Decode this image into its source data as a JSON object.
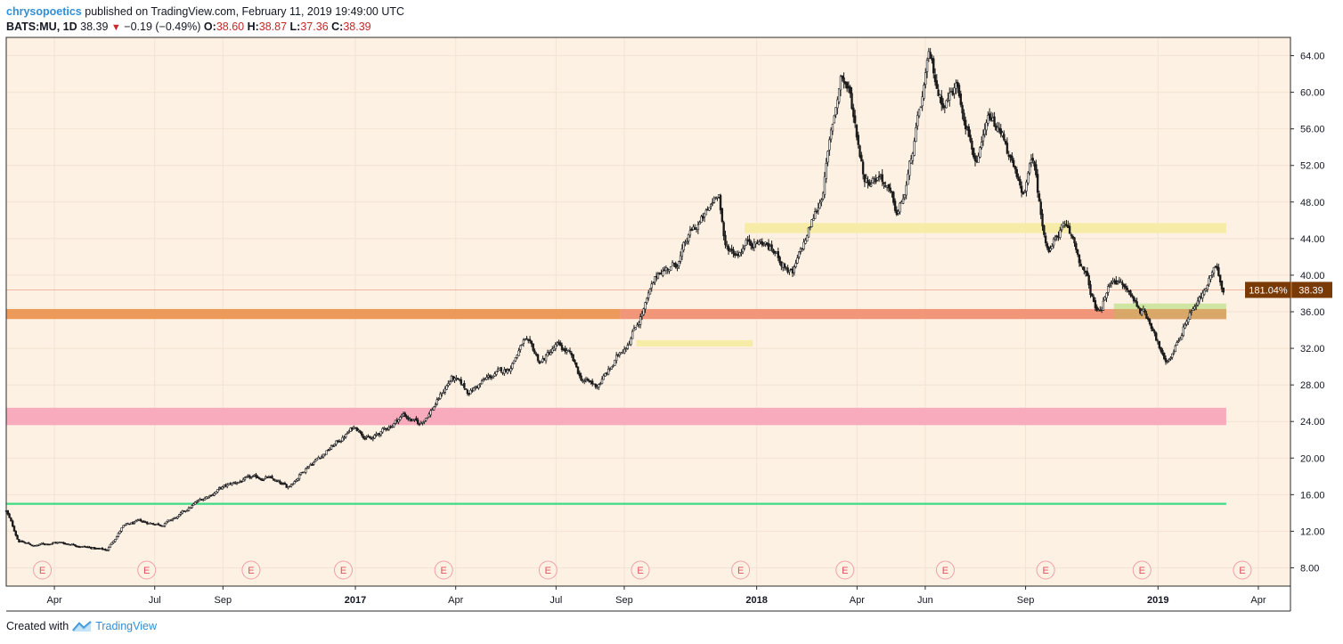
{
  "header": {
    "author": "chrysopoetics",
    "published_text": "published on TradingView.com, February 11, 2019 19:49:00 UTC",
    "symbol": "BATS:MU, 1D",
    "price": "38.39",
    "change": "−0.19 (−0.49%)",
    "o_label": "O:",
    "o_value": "38.60",
    "h_label": "H:",
    "h_value": "38.87",
    "l_label": "L:",
    "l_value": "37.36",
    "c_label": "C:",
    "c_value": "38.39"
  },
  "footer": {
    "created_with": "Created with",
    "brand": "TradingView"
  },
  "chart_data": {
    "type": "candlestick",
    "y_axis": {
      "min": 6,
      "max": 66,
      "ticks": [
        "64.00",
        "60.00",
        "56.00",
        "52.00",
        "48.00",
        "44.00",
        "40.00",
        "36.00",
        "32.00",
        "28.00",
        "24.00",
        "20.00",
        "16.00",
        "12.00",
        "8.00"
      ]
    },
    "x_axis": {
      "start": 2016.13,
      "end": 2019.33,
      "ticks": [
        {
          "t": 2016.25,
          "label": "Apr",
          "bold": false
        },
        {
          "t": 2016.5,
          "label": "Jul",
          "bold": false
        },
        {
          "t": 2016.67,
          "label": "Sep",
          "bold": false
        },
        {
          "t": 2017.0,
          "label": "2017",
          "bold": true
        },
        {
          "t": 2017.25,
          "label": "Apr",
          "bold": false
        },
        {
          "t": 2017.5,
          "label": "Jul",
          "bold": false
        },
        {
          "t": 2017.67,
          "label": "Sep",
          "bold": false
        },
        {
          "t": 2018.0,
          "label": "2018",
          "bold": true
        },
        {
          "t": 2018.25,
          "label": "Apr",
          "bold": false
        },
        {
          "t": 2018.42,
          "label": "Jun",
          "bold": false
        },
        {
          "t": 2018.67,
          "label": "Sep",
          "bold": false
        },
        {
          "t": 2019.0,
          "label": "2019",
          "bold": true
        },
        {
          "t": 2019.25,
          "label": "Apr",
          "bold": false
        }
      ]
    },
    "price_path": [
      [
        2016.13,
        14.2
      ],
      [
        2016.16,
        11.0
      ],
      [
        2016.2,
        10.4
      ],
      [
        2016.25,
        10.8
      ],
      [
        2016.3,
        10.6
      ],
      [
        2016.34,
        10.2
      ],
      [
        2016.38,
        9.9
      ],
      [
        2016.42,
        12.5
      ],
      [
        2016.46,
        13.0
      ],
      [
        2016.52,
        12.8
      ],
      [
        2016.56,
        13.6
      ],
      [
        2016.6,
        15.0
      ],
      [
        2016.66,
        16.6
      ],
      [
        2016.72,
        17.6
      ],
      [
        2016.78,
        17.9
      ],
      [
        2016.83,
        16.7
      ],
      [
        2016.88,
        19.2
      ],
      [
        2016.92,
        20.5
      ],
      [
        2016.96,
        21.9
      ],
      [
        2017.0,
        23.5
      ],
      [
        2017.04,
        22.0
      ],
      [
        2017.08,
        23.3
      ],
      [
        2017.12,
        24.8
      ],
      [
        2017.16,
        23.6
      ],
      [
        2017.2,
        26.0
      ],
      [
        2017.24,
        28.8
      ],
      [
        2017.28,
        27.2
      ],
      [
        2017.33,
        28.7
      ],
      [
        2017.38,
        29.7
      ],
      [
        2017.42,
        32.8
      ],
      [
        2017.46,
        30.4
      ],
      [
        2017.5,
        32.2
      ],
      [
        2017.53,
        31.5
      ],
      [
        2017.56,
        28.7
      ],
      [
        2017.6,
        27.8
      ],
      [
        2017.64,
        30.0
      ],
      [
        2017.68,
        33.0
      ],
      [
        2017.72,
        36.5
      ],
      [
        2017.76,
        40.6
      ],
      [
        2017.8,
        41.2
      ],
      [
        2017.84,
        44.8
      ],
      [
        2017.88,
        46.8
      ],
      [
        2017.905,
        49.7
      ],
      [
        2017.92,
        43.0
      ],
      [
        2017.95,
        42.5
      ],
      [
        2017.98,
        44.0
      ],
      [
        2018.02,
        43.5
      ],
      [
        2018.05,
        42.2
      ],
      [
        2018.09,
        40.0
      ],
      [
        2018.13,
        44.8
      ],
      [
        2018.16,
        48.4
      ],
      [
        2018.19,
        56.5
      ],
      [
        2018.21,
        62.0
      ],
      [
        2018.23,
        60.2
      ],
      [
        2018.27,
        50.5
      ],
      [
        2018.31,
        51.2
      ],
      [
        2018.35,
        46.5
      ],
      [
        2018.37,
        49.0
      ],
      [
        2018.4,
        56.2
      ],
      [
        2018.43,
        63.5
      ],
      [
        2018.46,
        59.0
      ],
      [
        2018.5,
        60.8
      ],
      [
        2018.52,
        57.6
      ],
      [
        2018.55,
        52.0
      ],
      [
        2018.58,
        56.8
      ],
      [
        2018.62,
        54.6
      ],
      [
        2018.66,
        48.3
      ],
      [
        2018.69,
        52.8
      ],
      [
        2018.71,
        45.8
      ],
      [
        2018.73,
        42.8
      ],
      [
        2018.76,
        45.3
      ],
      [
        2018.79,
        43.5
      ],
      [
        2018.82,
        39.8
      ],
      [
        2018.85,
        35.4
      ],
      [
        2018.89,
        40.0
      ],
      [
        2018.93,
        37.8
      ],
      [
        2018.96,
        36.2
      ],
      [
        2018.99,
        34.3
      ],
      [
        2019.02,
        30.0
      ],
      [
        2019.05,
        33.0
      ],
      [
        2019.08,
        36.2
      ],
      [
        2019.11,
        37.6
      ],
      [
        2019.14,
        40.6
      ],
      [
        2019.163,
        38.39
      ]
    ],
    "zones": [
      {
        "name": "orange-zone",
        "t0": 2016.13,
        "t1": 2017.66,
        "y0": 35.2,
        "y1": 36.3,
        "color": "#ec9a5a"
      },
      {
        "name": "salmon-zone",
        "t0": 2017.66,
        "t1": 2019.17,
        "y0": 35.2,
        "y1": 36.3,
        "color": "#f2967a"
      },
      {
        "name": "pink-zone",
        "t0": 2016.13,
        "t1": 2019.17,
        "y0": 23.6,
        "y1": 25.5,
        "color": "#f8abbc"
      },
      {
        "name": "yellow-zone-2018",
        "t0": 2017.97,
        "t1": 2019.17,
        "y0": 44.6,
        "y1": 45.7,
        "color": "#f6eca8"
      },
      {
        "name": "yellow-zone-2017",
        "t0": 2017.7,
        "t1": 2017.99,
        "y0": 32.2,
        "y1": 32.9,
        "color": "#f6eca8"
      },
      {
        "name": "green-highlight",
        "t0": 2018.89,
        "t1": 2019.17,
        "y0": 36.3,
        "y1": 36.9,
        "color": "#cfe6a3"
      },
      {
        "name": "tan-overlap",
        "t0": 2018.89,
        "t1": 2019.17,
        "y0": 35.2,
        "y1": 36.3,
        "color": "#d9a869"
      }
    ],
    "green_line": {
      "value": 15.0,
      "t0": 2016.13,
      "t1": 2019.17,
      "color": "#3ddc84"
    },
    "last_price_line": {
      "value": 38.39,
      "color": "#f0b6a0"
    },
    "price_label": {
      "percent": "181.04%",
      "value": "38.39",
      "color": "#7a3a06"
    },
    "earnings_marker": {
      "text": "E",
      "times": [
        2016.22,
        2016.48,
        2016.74,
        2016.97,
        2017.22,
        2017.48,
        2017.71,
        2017.96,
        2018.22,
        2018.47,
        2018.72,
        2018.96,
        2019.21
      ]
    },
    "colors": {
      "background": "#fdf1e4",
      "grid": "#f3e3d2",
      "candle": "#1b1b1b",
      "earnings": "#e05060"
    }
  }
}
